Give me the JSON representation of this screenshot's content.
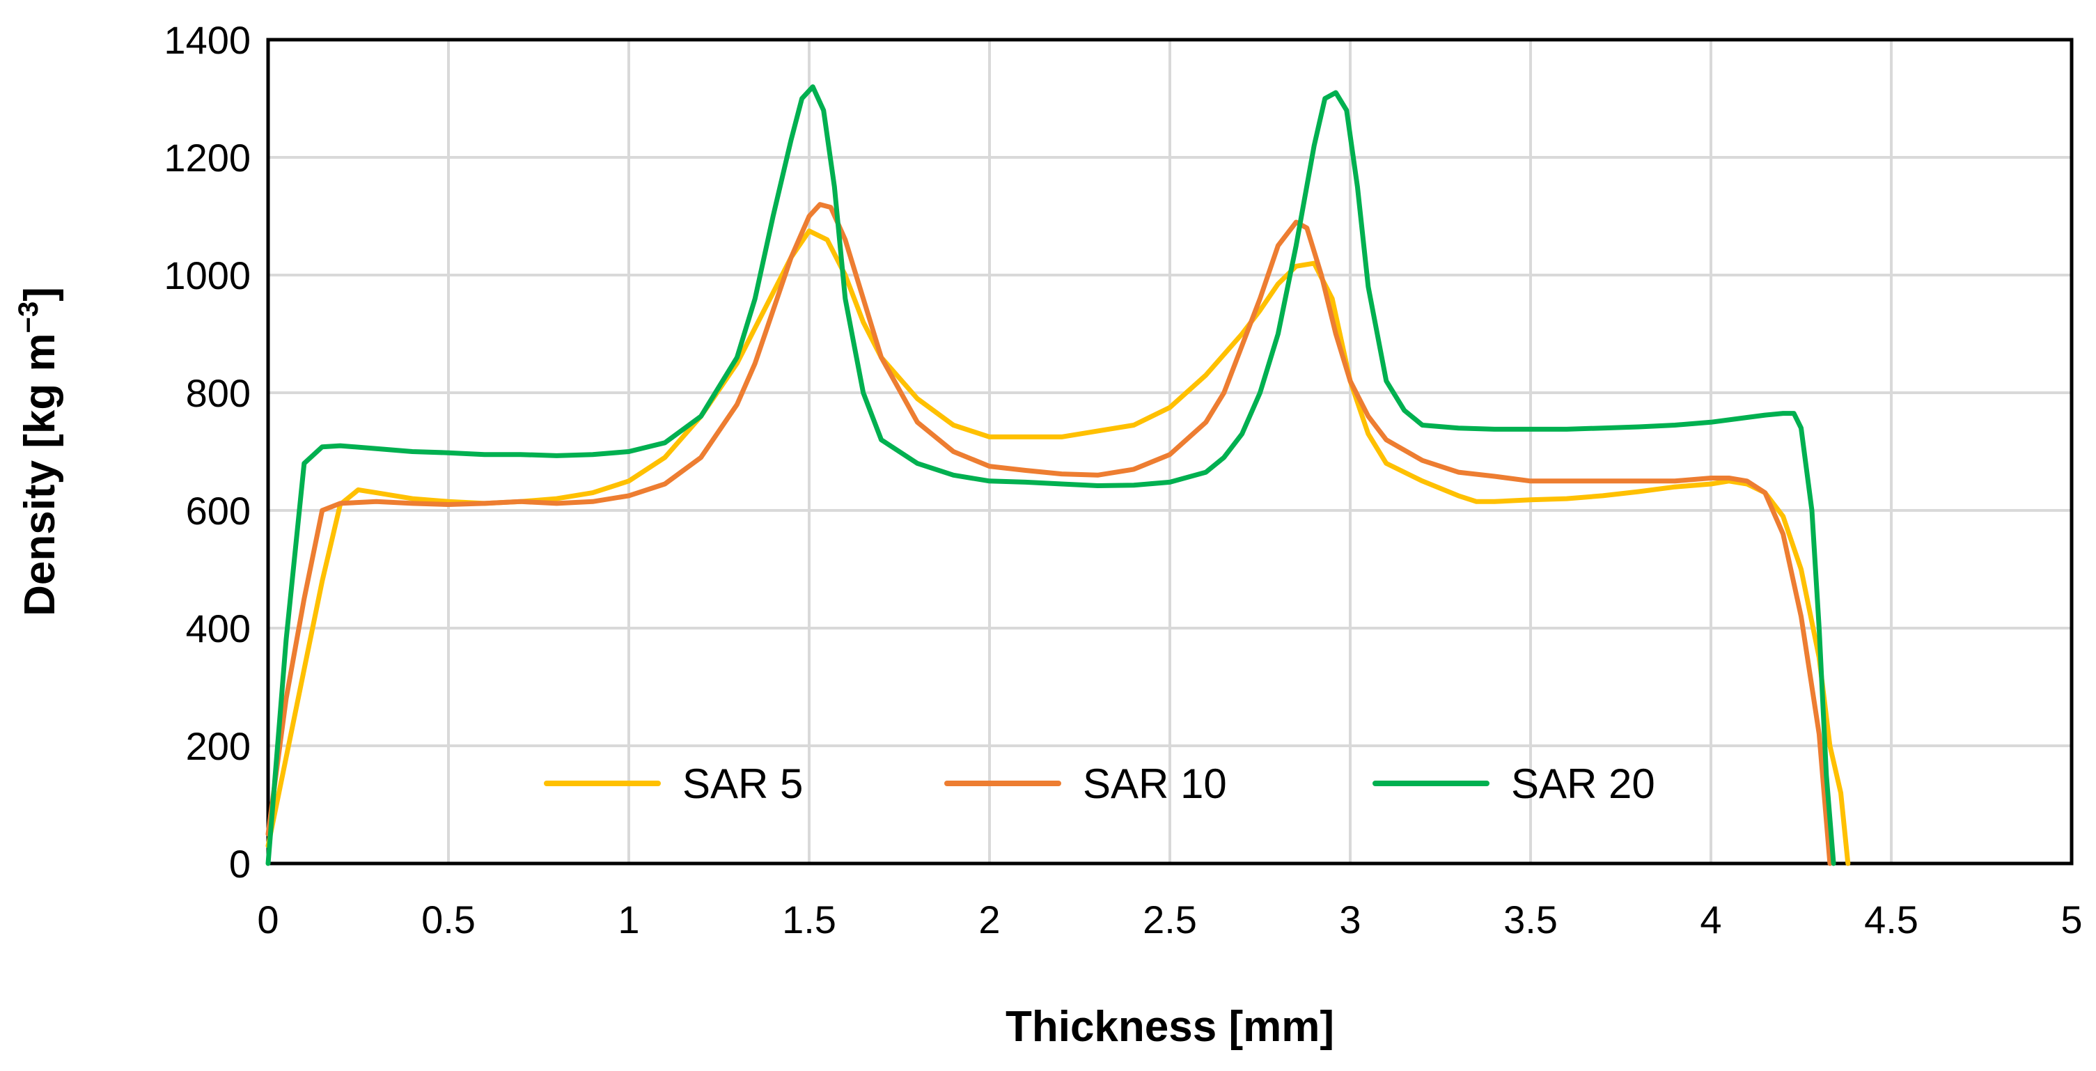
{
  "chart_data": {
    "type": "line",
    "title": "",
    "xlabel": "Thickness [mm]",
    "ylabel_main": "Density [kg m",
    "ylabel_sup": "−3",
    "ylabel_end": "]",
    "xlim": [
      0,
      5
    ],
    "ylim": [
      0,
      1400
    ],
    "xticks": [
      0,
      0.5,
      1,
      1.5,
      2,
      2.5,
      3,
      3.5,
      4,
      4.5,
      5
    ],
    "xtick_labels": [
      "0",
      "0.5",
      "1",
      "1.5",
      "2",
      "2.5",
      "3",
      "3.5",
      "4",
      "4.5",
      "5"
    ],
    "yticks": [
      0,
      200,
      400,
      600,
      800,
      1000,
      1200,
      1400
    ],
    "ytick_labels": [
      "0",
      "200",
      "400",
      "600",
      "800",
      "1000",
      "1200",
      "1400"
    ],
    "grid": true,
    "legend_position": "bottom-center",
    "series": [
      {
        "name": "SAR 5",
        "color": "#FFC000",
        "x": [
          0,
          0.05,
          0.1,
          0.15,
          0.2,
          0.25,
          0.3,
          0.4,
          0.5,
          0.6,
          0.7,
          0.8,
          0.9,
          1.0,
          1.1,
          1.2,
          1.3,
          1.35,
          1.4,
          1.45,
          1.5,
          1.55,
          1.6,
          1.65,
          1.7,
          1.8,
          1.9,
          2.0,
          2.1,
          2.2,
          2.3,
          2.4,
          2.5,
          2.6,
          2.7,
          2.75,
          2.8,
          2.85,
          2.9,
          2.95,
          3.0,
          3.05,
          3.1,
          3.2,
          3.3,
          3.35,
          3.4,
          3.5,
          3.6,
          3.7,
          3.8,
          3.9,
          4.0,
          4.05,
          4.1,
          4.15,
          4.2,
          4.25,
          4.3,
          4.33,
          4.36,
          4.38
        ],
        "y": [
          30,
          180,
          330,
          480,
          610,
          635,
          630,
          620,
          615,
          612,
          615,
          620,
          630,
          650,
          690,
          760,
          850,
          910,
          970,
          1030,
          1075,
          1060,
          1000,
          920,
          860,
          790,
          745,
          725,
          725,
          725,
          735,
          745,
          775,
          830,
          900,
          940,
          985,
          1015,
          1020,
          960,
          820,
          730,
          680,
          650,
          625,
          615,
          615,
          618,
          620,
          625,
          632,
          640,
          645,
          650,
          645,
          630,
          590,
          500,
          350,
          200,
          120,
          0
        ]
      },
      {
        "name": "SAR 10",
        "color": "#ED7D31",
        "x": [
          0,
          0.05,
          0.1,
          0.15,
          0.2,
          0.3,
          0.4,
          0.5,
          0.6,
          0.7,
          0.8,
          0.9,
          1.0,
          1.1,
          1.2,
          1.3,
          1.35,
          1.4,
          1.45,
          1.5,
          1.53,
          1.56,
          1.6,
          1.65,
          1.7,
          1.8,
          1.9,
          2.0,
          2.1,
          2.2,
          2.3,
          2.4,
          2.5,
          2.6,
          2.65,
          2.7,
          2.75,
          2.8,
          2.85,
          2.88,
          2.92,
          2.96,
          3.0,
          3.05,
          3.1,
          3.2,
          3.3,
          3.4,
          3.5,
          3.6,
          3.7,
          3.8,
          3.9,
          4.0,
          4.05,
          4.1,
          4.15,
          4.2,
          4.25,
          4.3,
          4.33
        ],
        "y": [
          50,
          280,
          450,
          600,
          612,
          615,
          612,
          610,
          612,
          615,
          612,
          615,
          625,
          645,
          690,
          780,
          850,
          940,
          1030,
          1100,
          1120,
          1115,
          1060,
          960,
          860,
          750,
          700,
          675,
          668,
          662,
          660,
          670,
          695,
          750,
          800,
          880,
          960,
          1050,
          1090,
          1080,
          1000,
          900,
          820,
          760,
          720,
          685,
          665,
          658,
          650,
          650,
          650,
          650,
          650,
          655,
          655,
          650,
          630,
          560,
          420,
          220,
          0
        ]
      },
      {
        "name": "SAR 20",
        "color": "#00B050",
        "x": [
          0,
          0.05,
          0.1,
          0.15,
          0.2,
          0.3,
          0.4,
          0.5,
          0.6,
          0.7,
          0.8,
          0.9,
          1.0,
          1.1,
          1.2,
          1.3,
          1.35,
          1.4,
          1.45,
          1.48,
          1.51,
          1.54,
          1.57,
          1.6,
          1.65,
          1.7,
          1.8,
          1.9,
          2.0,
          2.1,
          2.2,
          2.3,
          2.4,
          2.5,
          2.6,
          2.65,
          2.7,
          2.75,
          2.8,
          2.85,
          2.9,
          2.93,
          2.96,
          2.99,
          3.02,
          3.05,
          3.1,
          3.15,
          3.2,
          3.3,
          3.4,
          3.5,
          3.6,
          3.7,
          3.8,
          3.9,
          4.0,
          4.1,
          4.15,
          4.2,
          4.23,
          4.25,
          4.28,
          4.3,
          4.32,
          4.34
        ],
        "y": [
          0,
          380,
          680,
          708,
          710,
          705,
          700,
          698,
          695,
          695,
          693,
          695,
          700,
          715,
          760,
          860,
          960,
          1100,
          1230,
          1300,
          1320,
          1280,
          1150,
          960,
          800,
          720,
          680,
          660,
          650,
          648,
          645,
          642,
          643,
          648,
          665,
          690,
          730,
          800,
          900,
          1050,
          1220,
          1300,
          1310,
          1280,
          1150,
          980,
          820,
          770,
          745,
          740,
          738,
          738,
          738,
          740,
          742,
          745,
          750,
          758,
          762,
          765,
          765,
          740,
          600,
          400,
          150,
          0
        ]
      }
    ]
  }
}
